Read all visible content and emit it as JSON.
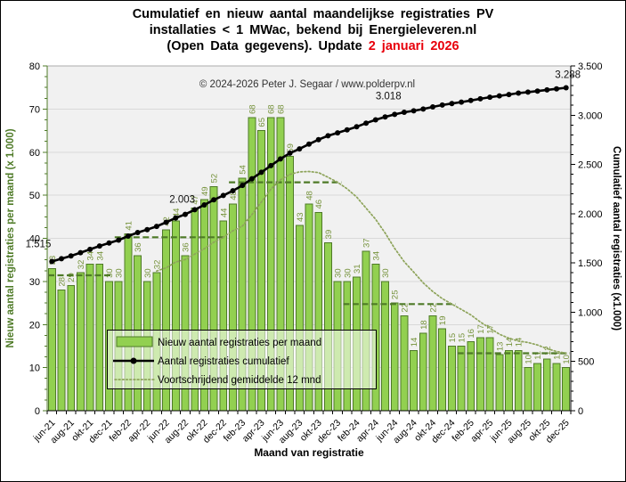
{
  "title": {
    "line1": "Cumulatief en nieuw aantal maandelijkse registraties PV",
    "line2": "installaties < 1 MWac, bekend bij Energieleveren.nl",
    "line3_prefix": "(Open Data gegevens). Update ",
    "line3_date": "2 januari 2026"
  },
  "copyright": "© 2024-2026 Peter J. Segaar / www.polderpv.nl",
  "chart_data": {
    "type": "bar",
    "x_title": "Maand van registratie",
    "months": [
      "jun-21",
      "jul-21",
      "aug-21",
      "sep-21",
      "okt-21",
      "nov-21",
      "dec-21",
      "jan-22",
      "feb-22",
      "mrt-22",
      "apr-22",
      "mei-22",
      "jun-22",
      "jul-22",
      "aug-22",
      "sep-22",
      "okt-22",
      "nov-22",
      "dec-22",
      "jan-23",
      "feb-23",
      "mrt-23",
      "apr-23",
      "mei-23",
      "jun-23",
      "jul-23",
      "aug-23",
      "sep-23",
      "okt-23",
      "nov-23",
      "dec-23",
      "jan-24",
      "feb-24",
      "mrt-24",
      "apr-24",
      "mei-24",
      "jun-24",
      "jul-24",
      "aug-24",
      "sep-24",
      "okt-24",
      "nov-24",
      "dec-24",
      "jan-25",
      "feb-25",
      "mrt-25",
      "apr-25",
      "mei-25",
      "jun-25",
      "jul-25",
      "aug-25",
      "sep-25",
      "okt-25",
      "nov-25",
      "dec-25"
    ],
    "monthly_new_registrations_x1000": [
      33,
      28,
      29,
      32,
      34,
      34,
      30,
      30,
      41,
      36,
      30,
      32,
      42,
      44,
      36,
      47,
      49,
      52,
      44,
      48,
      54,
      68,
      65,
      68,
      68,
      59,
      43,
      48,
      46,
      39,
      30,
      30,
      31,
      37,
      34,
      30,
      25,
      22,
      14,
      18,
      22,
      19,
      15,
      15,
      16,
      17,
      17,
      13,
      14,
      14,
      10,
      11,
      12,
      11,
      10
    ],
    "cumulative_start_jun21_x1000": 1515,
    "cumulative_end_dec25_x1000": 3288,
    "series": [
      {
        "name": "Nieuw aantal registraties per maand",
        "type": "bar",
        "axis": "left"
      },
      {
        "name": "Aantal registraties cumulatief",
        "type": "line",
        "axis": "right",
        "derivation": "running total of monthly values starting at 1.515 in jun-21"
      },
      {
        "name": "Voortschrijdend gemiddelde 12 mnd",
        "type": "dotted_line",
        "axis": "left",
        "derivation": "trailing 12-month average of monthly values"
      },
      {
        "name": "jaargemiddelde (dashed segments, not in legend)",
        "type": "dashed_segments",
        "axis": "left",
        "derivation": "calendar-year average of monthly values"
      }
    ],
    "axes": {
      "left": {
        "title": "Nieuw aantal registraties per maand (x 1.000)",
        "min": 0,
        "max": 80,
        "tick_labels": [
          "0",
          "10",
          "20",
          "30",
          "40",
          "50",
          "60",
          "70",
          "80"
        ]
      },
      "right": {
        "title": "Cumulatief aantal registraties (x1.000)",
        "min": 0,
        "max": 3500,
        "tick_labels": [
          "0",
          "500",
          "1.000",
          "1.500",
          "2.000",
          "2.500",
          "3.000",
          "3.500"
        ]
      },
      "x_tick_labels": [
        "jun-21",
        "aug-21",
        "okt-21",
        "dec-21",
        "feb-22",
        "apr-22",
        "jun-22",
        "aug-22",
        "okt-22",
        "dec-22",
        "feb-23",
        "apr-23",
        "jun-23",
        "aug-23",
        "okt-23",
        "dec-23",
        "feb-24",
        "apr-24",
        "jun-24",
        "aug-24",
        "okt-24",
        "dec-24",
        "feb-25",
        "apr-25",
        "jun-25",
        "aug-25",
        "okt-25",
        "dec-25"
      ]
    },
    "annotations": [
      {
        "text": "1.515",
        "month": "jun-21"
      },
      {
        "text": "2.003",
        "month": "aug-22"
      },
      {
        "text": "3.018",
        "month": "jun-24"
      },
      {
        "text": "3.288",
        "month": "dec-25"
      }
    ],
    "legend": [
      "Nieuw aantal registraties per maand",
      "Aantal registraties cumulatief",
      "Voortschrijdend gemiddelde 12 mnd"
    ],
    "colors": {
      "bar_fill": "#92D050",
      "bar_stroke": "#4E7A27",
      "bar_label": "#76933C",
      "cumulative_line": "#000000",
      "moving_average": "#8EA45B",
      "year_average_dash": "#4E7A27",
      "left_axis": "#4F7B28",
      "plot_background": "#F1F1F1",
      "gridline": "#D9D9D9",
      "update_date_red": "#E8000B"
    }
  }
}
